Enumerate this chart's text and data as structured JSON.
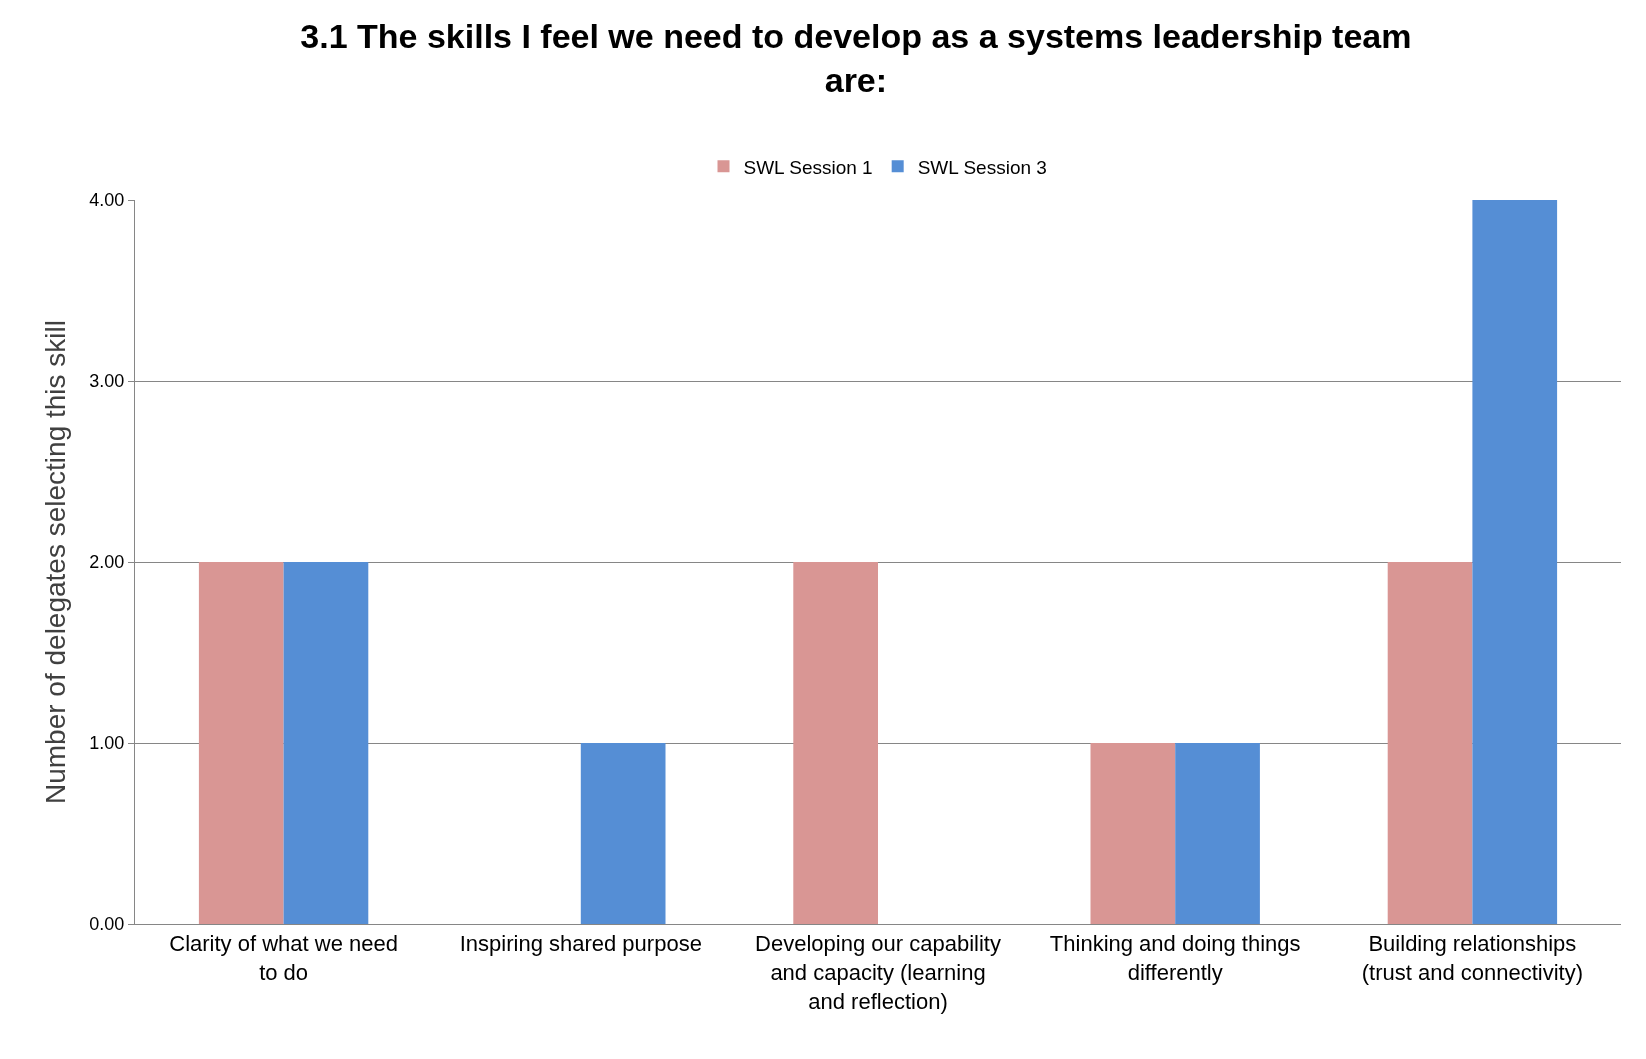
{
  "chart_data": {
    "type": "bar",
    "title": "3.1 The skills I feel we need to develop as a systems leadership team are:",
    "ylabel": "Number of delegates selecting this skill",
    "categories": [
      "Clarity of what we need to do",
      "Inspiring shared purpose",
      "Developing our capability and capacity (learning and reflection)",
      "Thinking and doing things differently",
      "Building relationships (trust and connectivity)"
    ],
    "series": [
      {
        "name": "SWL Session 1",
        "color": "#d99694",
        "values": [
          2,
          0,
          2,
          1,
          2
        ]
      },
      {
        "name": "SWL Session 3",
        "color": "#558ed5",
        "values": [
          2,
          1,
          0,
          1,
          4
        ]
      }
    ],
    "ylim": [
      0,
      4
    ],
    "yticks": [
      {
        "value": 0,
        "label": "0.00"
      },
      {
        "value": 1,
        "label": "1.00"
      },
      {
        "value": 2,
        "label": "2.00"
      },
      {
        "value": 3,
        "label": "3.00"
      },
      {
        "value": 4,
        "label": "4.00"
      }
    ],
    "grid": "y",
    "legend": "top"
  }
}
